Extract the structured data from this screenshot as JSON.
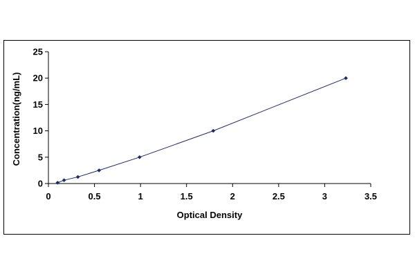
{
  "chart_data": {
    "type": "scatter",
    "xlabel": "Optical Density",
    "ylabel": "Concentration(ng/mL)",
    "xlim": [
      0,
      3.5
    ],
    "ylim": [
      0,
      25
    ],
    "x_ticks": [
      "0",
      "0.5",
      "1",
      "1.5",
      "2",
      "2.5",
      "3",
      "3.5"
    ],
    "y_ticks": [
      "0",
      "5",
      "10",
      "15",
      "20",
      "25"
    ],
    "x_tick_values": [
      0,
      0.5,
      1,
      1.5,
      2,
      2.5,
      3,
      3.5
    ],
    "y_tick_values": [
      0,
      5,
      10,
      15,
      20,
      25
    ],
    "grid": false,
    "trendline": true,
    "series": [
      {
        "x": [
          0.1,
          0.17,
          0.32,
          0.55,
          0.99,
          1.79,
          3.23
        ],
        "y": [
          0.16,
          0.63,
          1.25,
          2.5,
          5,
          10,
          20
        ]
      }
    ],
    "colors": {
      "marker": "#1a2a6c",
      "line": "#1a2a6c",
      "axis": "#000000"
    }
  }
}
